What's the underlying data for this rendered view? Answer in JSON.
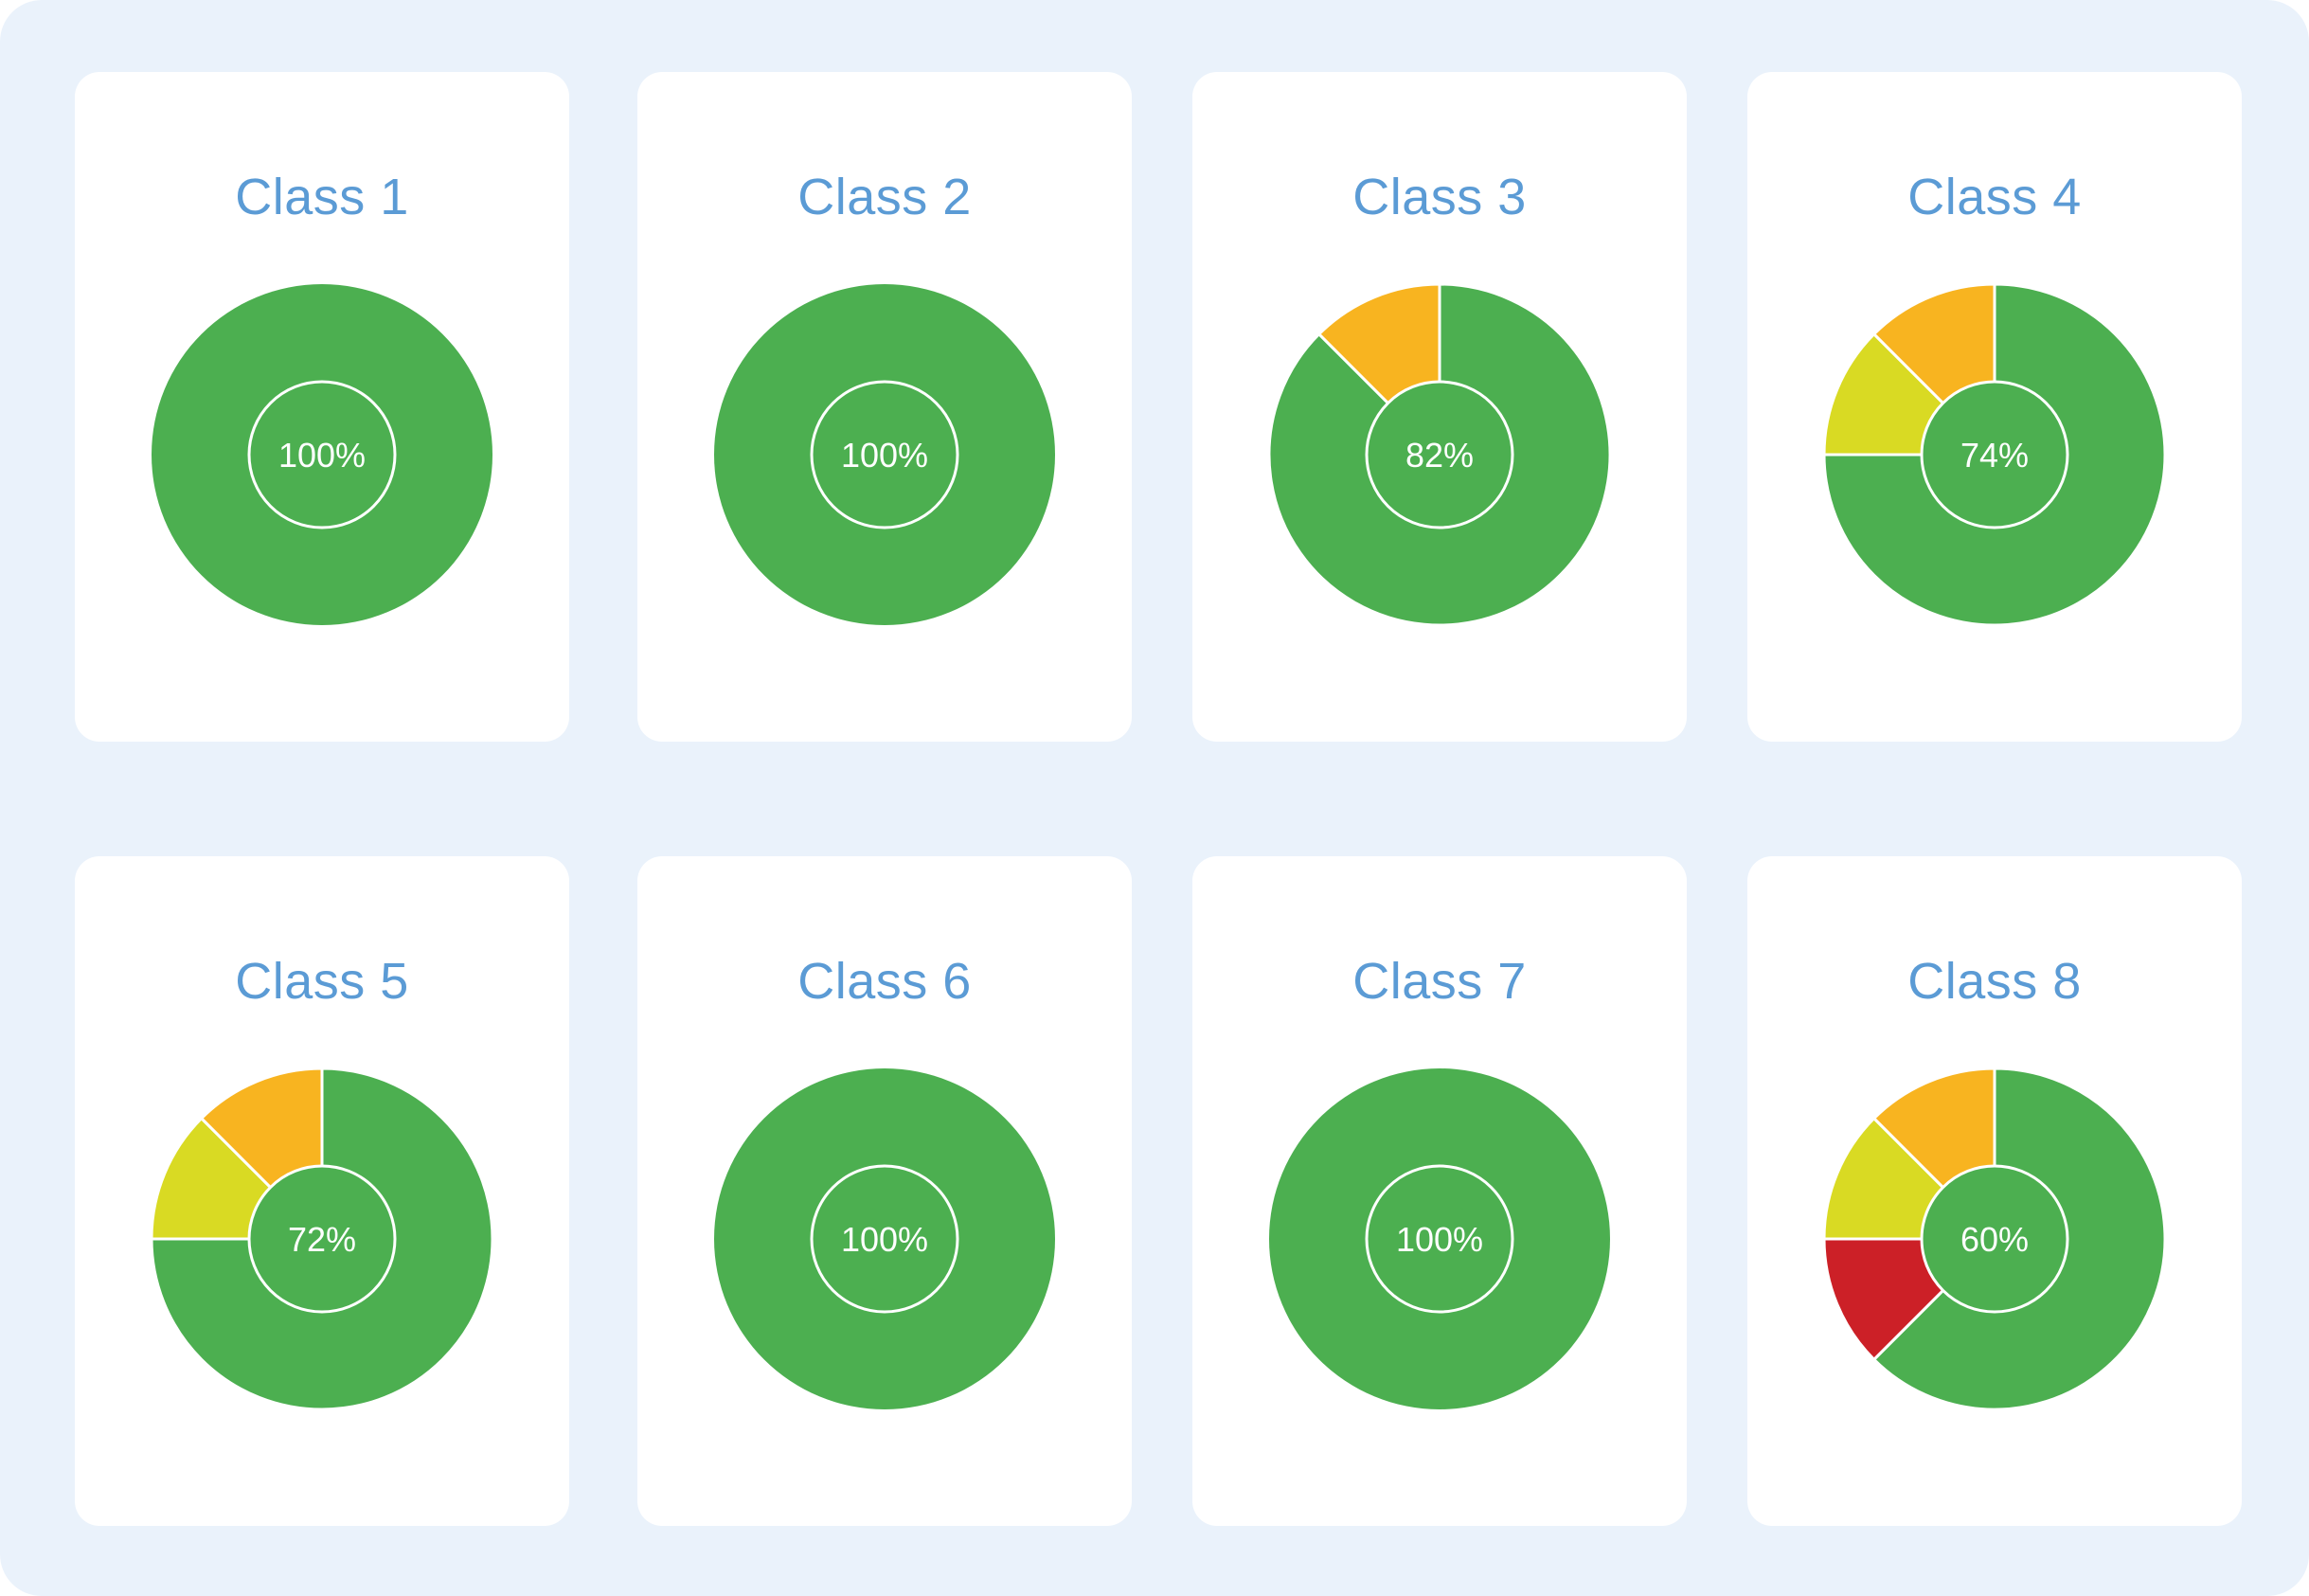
{
  "colors": {
    "background": "#eaf2fb",
    "card": "#ffffff",
    "title": "#5b9bd5",
    "green": "#4caf50",
    "orange": "#f8b420",
    "yellow": "#d9da23",
    "red": "#cc2027"
  },
  "chart_data": [
    {
      "type": "pie",
      "title": "Class 1",
      "center_label": "100%",
      "slices": [
        {
          "color": "green",
          "value": 100
        }
      ]
    },
    {
      "type": "pie",
      "title": "Class 2",
      "center_label": "100%",
      "slices": [
        {
          "color": "green",
          "value": 100
        }
      ]
    },
    {
      "type": "pie",
      "title": "Class 3",
      "center_label": "82%",
      "slices": [
        {
          "color": "green",
          "value": 87.5
        },
        {
          "color": "orange",
          "value": 12.5
        }
      ]
    },
    {
      "type": "pie",
      "title": "Class 4",
      "center_label": "74%",
      "slices": [
        {
          "color": "green",
          "value": 75
        },
        {
          "color": "yellow",
          "value": 12.5
        },
        {
          "color": "orange",
          "value": 12.5
        }
      ]
    },
    {
      "type": "pie",
      "title": "Class 5",
      "center_label": "72%",
      "slices": [
        {
          "color": "green",
          "value": 75
        },
        {
          "color": "yellow",
          "value": 12.5
        },
        {
          "color": "orange",
          "value": 12.5
        }
      ]
    },
    {
      "type": "pie",
      "title": "Class 6",
      "center_label": "100%",
      "slices": [
        {
          "color": "green",
          "value": 100
        }
      ]
    },
    {
      "type": "pie",
      "title": "Class 7",
      "center_label": "100%",
      "slices": [
        {
          "color": "green",
          "value": 100
        }
      ]
    },
    {
      "type": "pie",
      "title": "Class 8",
      "center_label": "60%",
      "slices": [
        {
          "color": "green",
          "value": 62.5
        },
        {
          "color": "red",
          "value": 12.5
        },
        {
          "color": "yellow",
          "value": 12.5
        },
        {
          "color": "orange",
          "value": 12.5
        }
      ]
    }
  ]
}
